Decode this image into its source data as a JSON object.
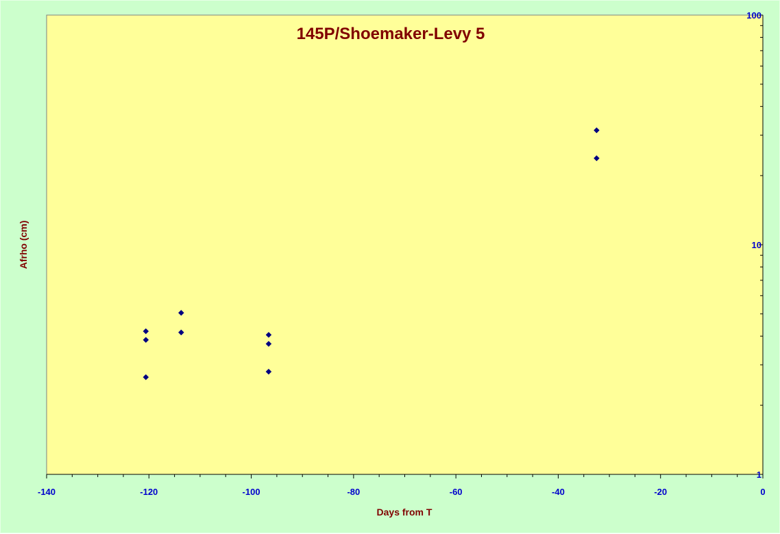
{
  "chart_data": {
    "type": "scatter",
    "title": "145P/Shoemaker-Levy 5",
    "xlabel": "Days from T",
    "ylabel": "Afrho (cm)",
    "xlim": [
      -140,
      0
    ],
    "ylim": [
      1,
      100
    ],
    "yscale": "log",
    "y_axis_side": "right",
    "grid": false,
    "legend": "none",
    "x_ticks": [
      "-140",
      "-120",
      "-100",
      "-80",
      "-60",
      "-40",
      "-20",
      "0"
    ],
    "y_ticks": [
      "1",
      "10",
      "100"
    ],
    "colors": {
      "background": "#ccffcc",
      "plot_area": "#ffff99",
      "marker": "#000080",
      "title": "#800000",
      "tick_labels": "#0000cc"
    },
    "series": [
      {
        "marker": "diamond",
        "x": [
          -120.6,
          -120.6,
          -120.6,
          -113.7,
          -113.7,
          -96.6,
          -96.6,
          -96.6,
          -32.5,
          -32.5
        ],
        "y": [
          4.2,
          3.85,
          2.65,
          5.05,
          4.15,
          4.05,
          3.7,
          2.8,
          31.5,
          23.8
        ]
      }
    ]
  }
}
